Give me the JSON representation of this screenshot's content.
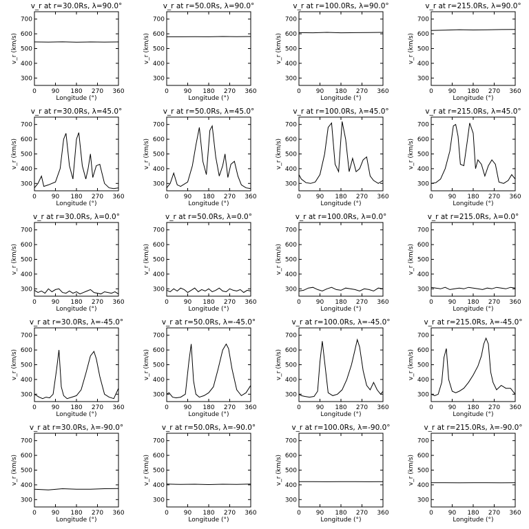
{
  "figure": {
    "xlabel": "Longitude (°)",
    "ylabel": "v_r (km/s)",
    "xticks": [
      "0",
      "90",
      "180",
      "270",
      "360"
    ],
    "yticks": [
      "300",
      "400",
      "500",
      "600",
      "700"
    ]
  },
  "chart_data": [
    {
      "type": "line",
      "title": "v_r at r=30.0Rs, λ=90.0°",
      "xlim": [
        0,
        360
      ],
      "ylim": [
        250,
        750
      ],
      "series": [
        {
          "x": [
            0,
            60,
            120,
            180,
            240,
            300,
            360
          ],
          "values": [
            545,
            544,
            546,
            543,
            545,
            544,
            545
          ]
        }
      ]
    },
    {
      "type": "line",
      "title": "v_r at r=50.0Rs, λ=90.0°",
      "xlim": [
        0,
        360
      ],
      "ylim": [
        250,
        750
      ],
      "series": [
        {
          "x": [
            0,
            60,
            120,
            180,
            240,
            300,
            360
          ],
          "values": [
            580,
            580,
            581,
            580,
            582,
            581,
            582
          ]
        }
      ]
    },
    {
      "type": "line",
      "title": "v_r at r=100.0Rs, λ=90.0°",
      "xlim": [
        0,
        360
      ],
      "ylim": [
        250,
        750
      ],
      "series": [
        {
          "x": [
            0,
            60,
            120,
            180,
            240,
            300,
            360
          ],
          "values": [
            608,
            607,
            610,
            607,
            608,
            609,
            610
          ]
        }
      ]
    },
    {
      "type": "line",
      "title": "v_r at r=215.0Rs, λ=90.0°",
      "xlim": [
        0,
        360
      ],
      "ylim": [
        250,
        750
      ],
      "series": [
        {
          "x": [
            0,
            60,
            120,
            180,
            240,
            300,
            360
          ],
          "values": [
            623,
            625,
            628,
            626,
            627,
            629,
            630
          ]
        }
      ]
    },
    {
      "type": "line",
      "title": "v_r at r=30.0Rs, λ=45.0°",
      "xlim": [
        0,
        360
      ],
      "ylim": [
        250,
        750
      ],
      "series": [
        {
          "x": [
            0,
            15,
            30,
            40,
            60,
            90,
            110,
            125,
            135,
            150,
            165,
            180,
            190,
            205,
            220,
            230,
            240,
            250,
            265,
            280,
            300,
            320,
            340,
            360
          ],
          "values": [
            270,
            300,
            350,
            280,
            290,
            310,
            400,
            600,
            640,
            420,
            330,
            600,
            645,
            420,
            330,
            400,
            500,
            340,
            420,
            430,
            300,
            270,
            265,
            270
          ]
        }
      ]
    },
    {
      "type": "line",
      "title": "v_r at r=50.0Rs, λ=45.0°",
      "xlim": [
        0,
        360
      ],
      "ylim": [
        250,
        750
      ],
      "series": [
        {
          "x": [
            0,
            15,
            30,
            45,
            60,
            90,
            110,
            125,
            140,
            155,
            170,
            185,
            195,
            210,
            225,
            240,
            250,
            262,
            275,
            290,
            305,
            320,
            340,
            360
          ],
          "values": [
            270,
            300,
            370,
            290,
            280,
            310,
            420,
            560,
            680,
            450,
            360,
            660,
            690,
            480,
            350,
            420,
            500,
            340,
            430,
            450,
            350,
            290,
            270,
            265
          ]
        }
      ]
    },
    {
      "type": "line",
      "title": "v_r at r=100.0Rs, λ=45.0°",
      "xlim": [
        0,
        360
      ],
      "ylim": [
        250,
        750
      ],
      "series": [
        {
          "x": [
            0,
            10,
            30,
            50,
            70,
            90,
            110,
            125,
            140,
            155,
            170,
            185,
            200,
            215,
            230,
            245,
            260,
            275,
            290,
            305,
            320,
            340,
            360
          ],
          "values": [
            360,
            330,
            305,
            300,
            310,
            360,
            500,
            680,
            710,
            430,
            380,
            720,
            600,
            380,
            470,
            380,
            400,
            460,
            480,
            350,
            320,
            300,
            320
          ]
        }
      ]
    },
    {
      "type": "line",
      "title": "v_r at r=215.0Rs, λ=45.0°",
      "xlim": [
        0,
        360
      ],
      "ylim": [
        250,
        750
      ],
      "series": [
        {
          "x": [
            0,
            20,
            40,
            60,
            80,
            95,
            105,
            115,
            125,
            140,
            155,
            165,
            180,
            190,
            200,
            215,
            230,
            245,
            260,
            275,
            290,
            310,
            330,
            345,
            360
          ],
          "values": [
            300,
            305,
            330,
            400,
            520,
            690,
            700,
            620,
            430,
            420,
            590,
            710,
            640,
            400,
            460,
            430,
            350,
            420,
            460,
            430,
            310,
            300,
            320,
            360,
            330
          ]
        }
      ]
    },
    {
      "type": "line",
      "title": "v_r at r=30.0Rs, λ=0.0°",
      "xlim": [
        0,
        360
      ],
      "ylim": [
        250,
        750
      ],
      "series": [
        {
          "x": [
            0,
            15,
            30,
            45,
            60,
            75,
            90,
            105,
            120,
            135,
            150,
            165,
            180,
            195,
            210,
            225,
            240,
            255,
            270,
            285,
            300,
            315,
            330,
            345,
            360
          ],
          "values": [
            290,
            275,
            285,
            270,
            300,
            280,
            295,
            300,
            275,
            270,
            285,
            270,
            280,
            265,
            275,
            285,
            295,
            275,
            270,
            265,
            280,
            275,
            270,
            280,
            265
          ]
        }
      ]
    },
    {
      "type": "line",
      "title": "v_r at r=50.0Rs, λ=0.0°",
      "xlim": [
        0,
        360
      ],
      "ylim": [
        250,
        750
      ],
      "series": [
        {
          "x": [
            0,
            15,
            30,
            45,
            60,
            75,
            90,
            105,
            120,
            135,
            150,
            165,
            180,
            195,
            210,
            225,
            240,
            255,
            270,
            285,
            300,
            315,
            330,
            345,
            360
          ],
          "values": [
            290,
            280,
            300,
            285,
            305,
            295,
            275,
            290,
            305,
            280,
            295,
            285,
            300,
            280,
            290,
            305,
            285,
            280,
            300,
            290,
            285,
            295,
            275,
            290,
            285
          ]
        }
      ]
    },
    {
      "type": "line",
      "title": "v_r at r=100.0Rs, λ=0.0°",
      "xlim": [
        0,
        360
      ],
      "ylim": [
        250,
        750
      ],
      "series": [
        {
          "x": [
            0,
            20,
            40,
            60,
            80,
            100,
            120,
            140,
            160,
            180,
            200,
            220,
            240,
            260,
            280,
            300,
            320,
            340,
            360
          ],
          "values": [
            285,
            290,
            305,
            310,
            295,
            285,
            300,
            310,
            295,
            290,
            305,
            300,
            295,
            285,
            300,
            295,
            285,
            305,
            300
          ]
        }
      ]
    },
    {
      "type": "line",
      "title": "v_r at r=215.0Rs, λ=0.0°",
      "xlim": [
        0,
        360
      ],
      "ylim": [
        250,
        750
      ],
      "series": [
        {
          "x": [
            0,
            20,
            40,
            60,
            80,
            100,
            120,
            140,
            160,
            180,
            200,
            220,
            240,
            260,
            280,
            300,
            320,
            340,
            360
          ],
          "values": [
            310,
            305,
            300,
            310,
            295,
            300,
            305,
            300,
            310,
            305,
            300,
            295,
            305,
            300,
            310,
            305,
            300,
            310,
            305
          ]
        }
      ]
    },
    {
      "type": "line",
      "title": "v_r at r=30.0Rs, λ=-45.0°",
      "xlim": [
        0,
        360
      ],
      "ylim": [
        250,
        750
      ],
      "series": [
        {
          "x": [
            0,
            10,
            20,
            35,
            50,
            65,
            80,
            95,
            105,
            115,
            125,
            140,
            160,
            180,
            200,
            220,
            240,
            255,
            265,
            280,
            300,
            320,
            340,
            360
          ],
          "values": [
            300,
            290,
            280,
            270,
            280,
            275,
            300,
            470,
            600,
            350,
            290,
            270,
            280,
            290,
            330,
            440,
            560,
            590,
            540,
            420,
            300,
            280,
            270,
            340
          ]
        }
      ]
    },
    {
      "type": "line",
      "title": "v_r at r=50.0Rs, λ=-45.0°",
      "xlim": [
        0,
        360
      ],
      "ylim": [
        250,
        750
      ],
      "series": [
        {
          "x": [
            0,
            10,
            25,
            40,
            60,
            80,
            95,
            105,
            115,
            125,
            140,
            160,
            180,
            200,
            220,
            240,
            255,
            265,
            280,
            300,
            320,
            340,
            360
          ],
          "values": [
            300,
            310,
            280,
            275,
            280,
            300,
            520,
            640,
            390,
            300,
            280,
            290,
            310,
            350,
            470,
            600,
            640,
            610,
            470,
            330,
            290,
            310,
            360
          ]
        }
      ]
    },
    {
      "type": "line",
      "title": "v_r at r=100.0Rs, λ=-45.0°",
      "xlim": [
        0,
        360
      ],
      "ylim": [
        250,
        750
      ],
      "series": [
        {
          "x": [
            0,
            10,
            25,
            45,
            65,
            80,
            90,
            100,
            110,
            125,
            145,
            165,
            185,
            205,
            225,
            240,
            250,
            260,
            275,
            290,
            305,
            320,
            335,
            350,
            360
          ],
          "values": [
            300,
            290,
            285,
            280,
            285,
            320,
            520,
            660,
            520,
            310,
            290,
            300,
            330,
            400,
            500,
            600,
            670,
            620,
            460,
            360,
            330,
            380,
            330,
            300,
            320
          ]
        }
      ]
    },
    {
      "type": "line",
      "title": "v_r at r=215.0Rs, λ=-45.0°",
      "xlim": [
        0,
        360
      ],
      "ylim": [
        250,
        750
      ],
      "series": [
        {
          "x": [
            0,
            15,
            30,
            45,
            55,
            65,
            75,
            90,
            105,
            120,
            140,
            160,
            180,
            200,
            215,
            225,
            235,
            245,
            255,
            265,
            280,
            300,
            320,
            340,
            360
          ],
          "values": [
            300,
            290,
            300,
            380,
            550,
            610,
            400,
            320,
            310,
            320,
            340,
            380,
            430,
            490,
            560,
            640,
            680,
            640,
            450,
            380,
            330,
            360,
            340,
            340,
            300
          ]
        }
      ]
    },
    {
      "type": "line",
      "title": "v_r at r=30.0Rs, λ=-90.0°",
      "xlim": [
        0,
        360
      ],
      "ylim": [
        250,
        750
      ],
      "series": [
        {
          "x": [
            0,
            60,
            120,
            180,
            240,
            300,
            360
          ],
          "values": [
            370,
            366,
            374,
            370,
            370,
            374,
            375
          ]
        }
      ]
    },
    {
      "type": "line",
      "title": "v_r at r=50.0Rs, λ=-90.0°",
      "xlim": [
        0,
        360
      ],
      "ylim": [
        250,
        750
      ],
      "series": [
        {
          "x": [
            0,
            60,
            120,
            180,
            240,
            300,
            360
          ],
          "values": [
            405,
            403,
            404,
            402,
            404,
            403,
            405
          ]
        }
      ]
    },
    {
      "type": "line",
      "title": "v_r at r=100.0Rs, λ=-90.0°",
      "xlim": [
        0,
        360
      ],
      "ylim": [
        250,
        750
      ],
      "series": [
        {
          "x": [
            0,
            60,
            120,
            180,
            240,
            300,
            360
          ],
          "values": [
            422,
            422,
            421,
            422,
            422,
            421,
            422
          ]
        }
      ]
    },
    {
      "type": "line",
      "title": "v_r at r=215.0Rs, λ=-90.0°",
      "xlim": [
        0,
        360
      ],
      "ylim": [
        250,
        750
      ],
      "series": [
        {
          "x": [
            0,
            60,
            120,
            180,
            240,
            300,
            360
          ],
          "values": [
            415,
            415,
            414,
            415,
            415,
            414,
            415
          ]
        }
      ]
    }
  ]
}
